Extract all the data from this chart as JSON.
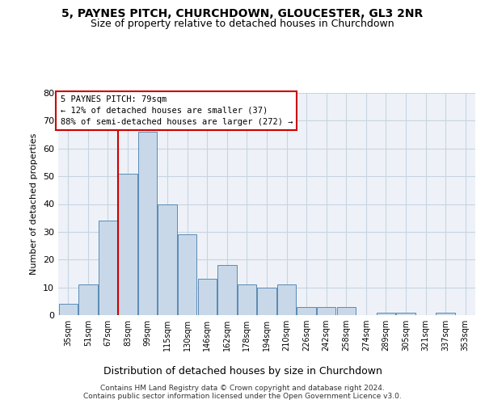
{
  "title1": "5, PAYNES PITCH, CHURCHDOWN, GLOUCESTER, GL3 2NR",
  "title2": "Size of property relative to detached houses in Churchdown",
  "xlabel": "Distribution of detached houses by size in Churchdown",
  "ylabel": "Number of detached properties",
  "categories": [
    "35sqm",
    "51sqm",
    "67sqm",
    "83sqm",
    "99sqm",
    "115sqm",
    "130sqm",
    "146sqm",
    "162sqm",
    "178sqm",
    "194sqm",
    "210sqm",
    "226sqm",
    "242sqm",
    "258sqm",
    "274sqm",
    "289sqm",
    "305sqm",
    "321sqm",
    "337sqm",
    "353sqm"
  ],
  "values": [
    4,
    11,
    34,
    51,
    66,
    40,
    29,
    13,
    18,
    11,
    10,
    11,
    3,
    3,
    3,
    0,
    1,
    1,
    0,
    1,
    0
  ],
  "bar_color": "#c8d8e8",
  "bar_edge_color": "#5a8ab5",
  "annotation_text_line1": "5 PAYNES PITCH: 79sqm",
  "annotation_text_line2": "← 12% of detached houses are smaller (37)",
  "annotation_text_line3": "88% of semi-detached houses are larger (272) →",
  "red_line_x": 2.5,
  "ylim": [
    0,
    80
  ],
  "yticks": [
    0,
    10,
    20,
    30,
    40,
    50,
    60,
    70,
    80
  ],
  "footer1": "Contains HM Land Registry data © Crown copyright and database right 2024.",
  "footer2": "Contains public sector information licensed under the Open Government Licence v3.0.",
  "bg_color": "#eef2f8",
  "grid_color": "#c8d4e0"
}
